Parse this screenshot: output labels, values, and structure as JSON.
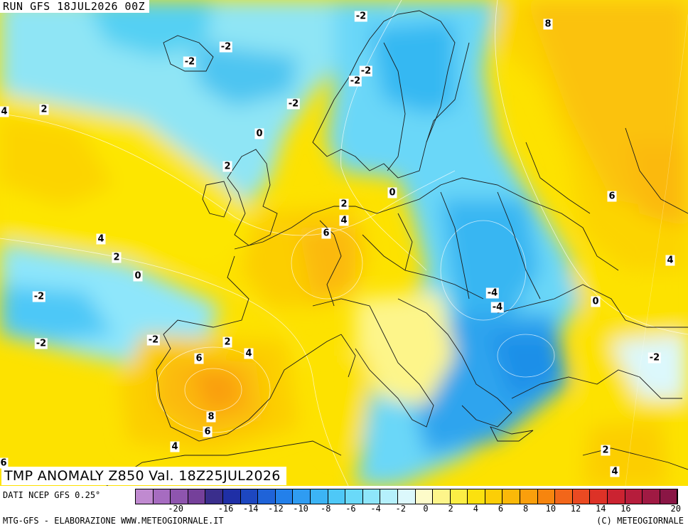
{
  "header": {
    "run_label": "RUN GFS 18JUL2026 00Z"
  },
  "map": {
    "title": "TMP ANOMALY Z850 Val. 18Z25JUL2026",
    "contour_labels": [
      "-2",
      "-2",
      "-2",
      "-2",
      "-2",
      "-2",
      "-2",
      "8",
      "4",
      "2",
      "0",
      "2",
      "0",
      "2",
      "4",
      "6",
      "4",
      "2",
      "0",
      "-2",
      "-2",
      "6",
      "4",
      "-4",
      "-4",
      "0",
      "-2",
      "2",
      "4",
      "6",
      "8",
      "6",
      "4",
      "2",
      "4",
      "6"
    ]
  },
  "legend": {
    "colors": [
      "#c08ad0",
      "#a66cc0",
      "#8e55ae",
      "#75409a",
      "#3a2e8c",
      "#1f2fa6",
      "#1d47c0",
      "#1f63d8",
      "#2380ea",
      "#2f9cf2",
      "#3cb4f5",
      "#4ec8f7",
      "#6ad9f9",
      "#8ee6fb",
      "#b5f0fc",
      "#dcf8fc",
      "#fdfbc9",
      "#fdf58a",
      "#fcee45",
      "#fbe10f",
      "#fcce06",
      "#fbb909",
      "#fa9f0c",
      "#f7850e",
      "#f2661a",
      "#ea4a22",
      "#dd3227",
      "#cb2331",
      "#b61d3c",
      "#a01a43",
      "#8a1645"
    ],
    "ticks": [
      "-20",
      "-16",
      "-14",
      "-12",
      "-10",
      "-8",
      "-6",
      "-4",
      "-2",
      "0",
      "2",
      "4",
      "6",
      "8",
      "10",
      "12",
      "14",
      "16",
      "20"
    ]
  },
  "footer": {
    "source": "DATI NCEP GFS 0.25°",
    "credit": "MTG-GFS - ELABORAZIONE WWW.METEOGIORNALE.IT",
    "copyright": "(C) METEOGIORNALE"
  }
}
